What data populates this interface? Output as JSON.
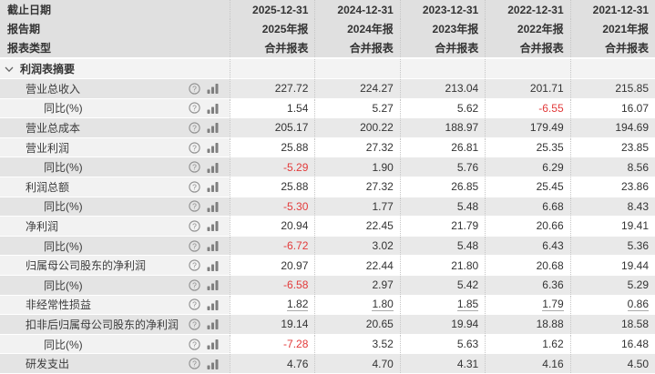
{
  "colors": {
    "header_bg": "#e0e0e0",
    "section_bg": "#f3f3f3",
    "row_dark_label": "#e4e4e4",
    "row_dark_value": "#e9e9e9",
    "row_light_label": "#f2f2f2",
    "row_light_value": "#ffffff",
    "text": "#333333",
    "negative": "#e23a3a",
    "icon": "#8a8a8a",
    "separator": "#c6c6c6"
  },
  "header": {
    "rows": [
      {
        "label": "截止日期",
        "values": [
          "2025-12-31",
          "2024-12-31",
          "2023-12-31",
          "2022-12-31",
          "2021-12-31"
        ]
      },
      {
        "label": "报告期",
        "values": [
          "2025年报",
          "2024年报",
          "2023年报",
          "2022年报",
          "2021年报"
        ]
      },
      {
        "label": "报表类型",
        "values": [
          "合并报表",
          "合并报表",
          "合并报表",
          "合并报表",
          "合并报表"
        ]
      }
    ]
  },
  "section": {
    "title": "利润表摘要"
  },
  "table": {
    "rows": [
      {
        "label": "营业总收入",
        "indent": 1,
        "help_icon": false,
        "chart_icon": true,
        "underline": false,
        "values": [
          "227.72",
          "224.27",
          "213.04",
          "201.71",
          "215.85"
        ]
      },
      {
        "label": "同比(%)",
        "indent": 2,
        "help_icon": true,
        "chart_icon": true,
        "underline": false,
        "values": [
          "1.54",
          "5.27",
          "5.62",
          "-6.55",
          "16.07"
        ]
      },
      {
        "label": "营业总成本",
        "indent": 1,
        "help_icon": false,
        "chart_icon": true,
        "underline": false,
        "values": [
          "205.17",
          "200.22",
          "188.97",
          "179.49",
          "194.69"
        ]
      },
      {
        "label": "营业利润",
        "indent": 1,
        "help_icon": false,
        "chart_icon": true,
        "underline": false,
        "values": [
          "25.88",
          "27.32",
          "26.81",
          "25.35",
          "23.85"
        ]
      },
      {
        "label": "同比(%)",
        "indent": 2,
        "help_icon": false,
        "chart_icon": true,
        "underline": false,
        "values": [
          "-5.29",
          "1.90",
          "5.76",
          "6.29",
          "8.56"
        ]
      },
      {
        "label": "利润总额",
        "indent": 1,
        "help_icon": false,
        "chart_icon": true,
        "underline": false,
        "values": [
          "25.88",
          "27.32",
          "26.85",
          "25.45",
          "23.86"
        ]
      },
      {
        "label": "同比(%)",
        "indent": 2,
        "help_icon": false,
        "chart_icon": true,
        "underline": false,
        "values": [
          "-5.30",
          "1.77",
          "5.48",
          "6.68",
          "8.43"
        ]
      },
      {
        "label": "净利润",
        "indent": 1,
        "help_icon": false,
        "chart_icon": true,
        "underline": false,
        "values": [
          "20.94",
          "22.45",
          "21.79",
          "20.66",
          "19.41"
        ]
      },
      {
        "label": "同比(%)",
        "indent": 2,
        "help_icon": false,
        "chart_icon": true,
        "underline": false,
        "values": [
          "-6.72",
          "3.02",
          "5.48",
          "6.43",
          "5.36"
        ]
      },
      {
        "label": "归属母公司股东的净利润",
        "indent": 1,
        "help_icon": false,
        "chart_icon": true,
        "underline": false,
        "values": [
          "20.97",
          "22.44",
          "21.80",
          "20.68",
          "19.44"
        ]
      },
      {
        "label": "同比(%)",
        "indent": 2,
        "help_icon": false,
        "chart_icon": true,
        "underline": false,
        "values": [
          "-6.58",
          "2.97",
          "5.42",
          "6.36",
          "5.29"
        ]
      },
      {
        "label": "非经常性损益",
        "indent": 1,
        "help_icon": false,
        "chart_icon": true,
        "underline": true,
        "values": [
          "1.82",
          "1.80",
          "1.85",
          "1.79",
          "0.86"
        ]
      },
      {
        "label": "扣非后归属母公司股东的净利润",
        "indent": 1,
        "help_icon": false,
        "chart_icon": true,
        "underline": false,
        "values": [
          "19.14",
          "20.65",
          "19.94",
          "18.88",
          "18.58"
        ]
      },
      {
        "label": "同比(%)",
        "indent": 2,
        "help_icon": false,
        "chart_icon": true,
        "underline": false,
        "values": [
          "-7.28",
          "3.52",
          "5.63",
          "1.62",
          "16.48"
        ]
      },
      {
        "label": "研发支出",
        "indent": 1,
        "help_icon": true,
        "chart_icon": true,
        "underline": false,
        "values": [
          "4.76",
          "4.70",
          "4.31",
          "4.16",
          "4.50"
        ]
      }
    ]
  }
}
